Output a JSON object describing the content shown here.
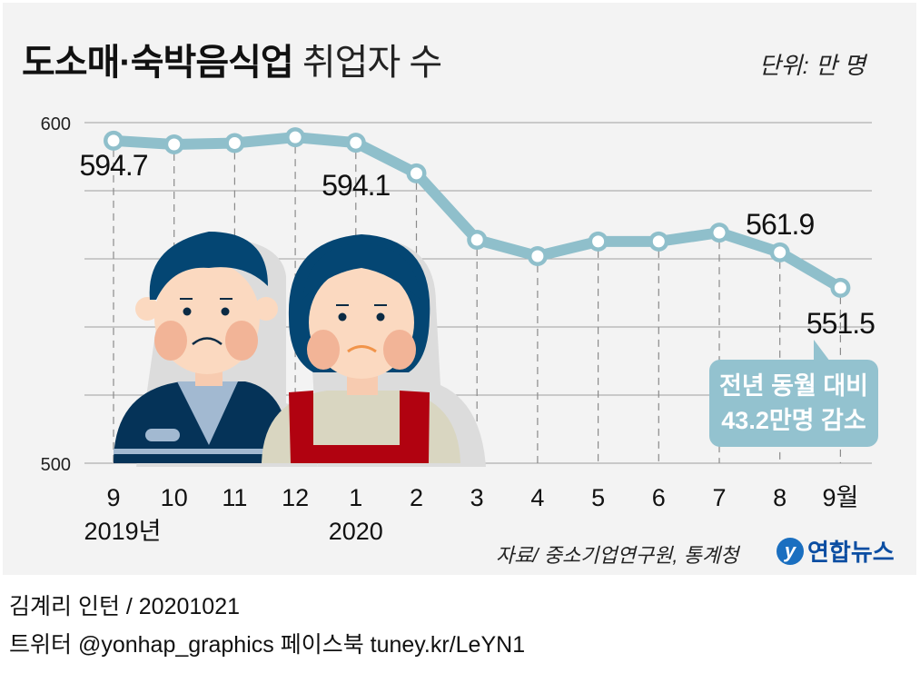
{
  "title": {
    "bold": "도소매·숙박음식업",
    "light": "취업자 수"
  },
  "unit": "단위: 만 명",
  "chart_data": {
    "type": "line",
    "title": "도소매·숙박음식업 취업자 수",
    "ylabel": "단위: 만 명",
    "xlabel": "",
    "categories": [
      "9",
      "10",
      "11",
      "12",
      "1",
      "2",
      "3",
      "4",
      "5",
      "6",
      "7",
      "8",
      "9월"
    ],
    "year_labels": [
      {
        "label": "2019년",
        "at": "9"
      },
      {
        "label": "2020",
        "at": "1"
      }
    ],
    "series": [
      {
        "name": "취업자 수",
        "values": [
          594.7,
          593.6,
          594.0,
          595.7,
          594.1,
          585.1,
          565.6,
          560.8,
          565.1,
          565.1,
          567.7,
          561.9,
          551.5
        ]
      }
    ],
    "data_labels": [
      {
        "index": 0,
        "text": "594.7"
      },
      {
        "index": 4,
        "text": "594.1"
      },
      {
        "index": 11,
        "text": "561.9"
      },
      {
        "index": 12,
        "text": "551.5"
      }
    ],
    "ylim": [
      500,
      600
    ],
    "yticks": [
      {
        "value": 600,
        "label": "600"
      },
      {
        "value": 500,
        "label": "500"
      }
    ],
    "grid": true,
    "line_color": "#8fbfcb",
    "annotation": "전년 동월 대비 43.2만명 감소"
  },
  "callout": {
    "line1": "전년 동월 대비",
    "line2": "43.2만명 감소"
  },
  "source": "자료/ 중소기업연구원, 통계청",
  "logo": {
    "mark": "y",
    "text": "연합뉴스"
  },
  "credit": "김계리 인턴 / 20201021",
  "social": "트위터 @yonhap_graphics  페이스북 tuney.kr/LeYN1"
}
